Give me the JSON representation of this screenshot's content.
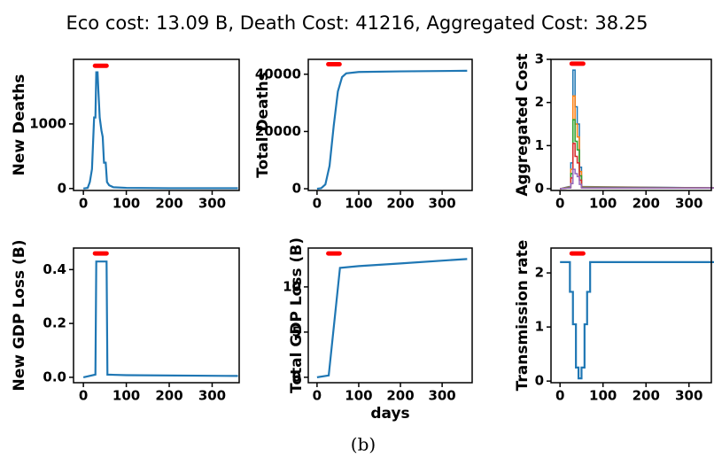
{
  "title": "Eco cost: 13.09 B, Death Cost: 41216, Aggregated Cost: 38.25",
  "caption": "(b)",
  "chart_data": [
    {
      "type": "line",
      "ylabel": "New Deaths",
      "x": [
        0,
        10,
        15,
        20,
        25,
        28,
        30,
        33,
        35,
        38,
        42,
        45,
        48,
        52,
        55,
        60,
        70,
        100,
        200,
        360
      ],
      "series": [
        {
          "color": "#1f77b4",
          "values": [
            0,
            10,
            100,
            300,
            1100,
            1100,
            1800,
            1800,
            1500,
            1100,
            900,
            800,
            400,
            400,
            100,
            50,
            20,
            10,
            5,
            5
          ]
        }
      ],
      "highlight": {
        "x": [
          27,
          54
        ],
        "y": 1900,
        "color": "#ff0000"
      },
      "xlim": [
        -23,
        363
      ],
      "xticks": [
        0,
        100,
        200,
        300
      ],
      "ylim": [
        -30,
        2000
      ],
      "yticks": [
        0,
        1000
      ]
    },
    {
      "type": "line",
      "ylabel": "Total Deaths",
      "x": [
        0,
        10,
        20,
        30,
        40,
        50,
        60,
        70,
        100,
        200,
        360
      ],
      "series": [
        {
          "color": "#1f77b4",
          "values": [
            0,
            200,
            1500,
            8000,
            22000,
            34000,
            39000,
            40300,
            40800,
            41000,
            41216
          ]
        }
      ],
      "highlight": {
        "x": [
          27,
          54
        ],
        "y": 43500,
        "color": "#ff0000"
      },
      "xlim": [
        -21,
        372
      ],
      "xticks": [
        0,
        100,
        200,
        300
      ],
      "ylim": [
        -600,
        45200
      ],
      "yticks": [
        0,
        20000,
        40000
      ]
    },
    {
      "type": "line",
      "ylabel": "Aggregated Cost",
      "x": [
        0,
        20,
        25,
        25,
        30,
        30,
        35,
        35,
        40,
        40,
        45,
        45,
        50,
        50,
        55,
        360
      ],
      "series": [
        {
          "color": "#1f77b4",
          "values": [
            0,
            0.05,
            0.05,
            0.6,
            0.6,
            2.75,
            2.75,
            1.9,
            1.9,
            1.5,
            1.5,
            0.5,
            0.5,
            0.05,
            0.05,
            0.02
          ]
        },
        {
          "color": "#ff7f0e",
          "values": [
            0,
            0.04,
            0.04,
            0.45,
            0.45,
            2.15,
            2.15,
            1.5,
            1.5,
            1.2,
            1.2,
            0.4,
            0.4,
            0.04,
            0.04,
            0.02
          ]
        },
        {
          "color": "#2ca02c",
          "values": [
            0,
            0.03,
            0.03,
            0.35,
            0.35,
            1.6,
            1.6,
            1.1,
            1.1,
            0.9,
            0.9,
            0.3,
            0.3,
            0.03,
            0.03,
            0.02
          ]
        },
        {
          "color": "#d62728",
          "values": [
            0,
            0.02,
            0.02,
            0.25,
            0.25,
            1.05,
            1.05,
            0.75,
            0.75,
            0.6,
            0.6,
            0.2,
            0.2,
            0.02,
            0.02,
            0.02
          ]
        },
        {
          "color": "#9467bd",
          "values": [
            0,
            0.02,
            0.02,
            0.12,
            0.12,
            0.45,
            0.45,
            0.35,
            0.35,
            0.28,
            0.28,
            0.1,
            0.1,
            0.02,
            0.02,
            0.02
          ]
        }
      ],
      "highlight": {
        "x": [
          27,
          54
        ],
        "y": 2.9,
        "color": "#ff0000"
      },
      "xlim": [
        -21,
        352
      ],
      "xticks": [
        0,
        100,
        200,
        300
      ],
      "ylim": [
        -0.04,
        3
      ],
      "yticks": [
        0,
        1,
        2,
        3
      ]
    },
    {
      "type": "line",
      "ylabel": "New GDP Loss (B)",
      "x": [
        0,
        28,
        30,
        54,
        56,
        100,
        360
      ],
      "series": [
        {
          "color": "#1f77b4",
          "values": [
            0,
            0.01,
            0.43,
            0.43,
            0.01,
            0.008,
            0.005
          ]
        }
      ],
      "highlight": {
        "x": [
          27,
          54
        ],
        "y": 0.46,
        "color": "#ff0000"
      },
      "xlim": [
        -23,
        363
      ],
      "xticks": [
        0,
        100,
        200,
        300
      ],
      "ylim": [
        -0.02,
        0.48
      ],
      "yticks": [
        {
          "value": 0,
          "label": "0.0"
        },
        0.2,
        0.4
      ]
    },
    {
      "type": "line",
      "ylabel": "Total GDP Loss (B)",
      "xlabel": "days",
      "x": [
        0,
        28,
        55,
        100,
        200,
        360
      ],
      "series": [
        {
          "color": "#1f77b4",
          "values": [
            0,
            0.2,
            12.1,
            12.3,
            12.6,
            13.09
          ]
        }
      ],
      "highlight": {
        "x": [
          27,
          54
        ],
        "y": 13.7,
        "color": "#ff0000"
      },
      "xlim": [
        -21,
        372
      ],
      "xticks": [
        0,
        100,
        200,
        300
      ],
      "ylim": [
        -0.6,
        14.3
      ],
      "yticks": [
        0,
        5,
        10
      ]
    },
    {
      "type": "line",
      "ylabel": "Transmission rate",
      "x": [
        0,
        23,
        23,
        30,
        30,
        37,
        37,
        43,
        43,
        50,
        50,
        57,
        57,
        63,
        63,
        70,
        70,
        360
      ],
      "series": [
        {
          "color": "#1f77b4",
          "values": [
            2.2,
            2.2,
            1.65,
            1.65,
            1.05,
            1.05,
            0.25,
            0.25,
            0.05,
            0.05,
            0.25,
            0.25,
            1.05,
            1.05,
            1.65,
            1.65,
            2.2,
            2.2
          ]
        }
      ],
      "highlight": {
        "x": [
          27,
          54
        ],
        "y": 2.36,
        "color": "#ff0000"
      },
      "xlim": [
        -21,
        352
      ],
      "xticks": [
        0,
        100,
        200,
        300
      ],
      "ylim": [
        -0.03,
        2.46
      ],
      "yticks": [
        0,
        1,
        2
      ]
    }
  ]
}
